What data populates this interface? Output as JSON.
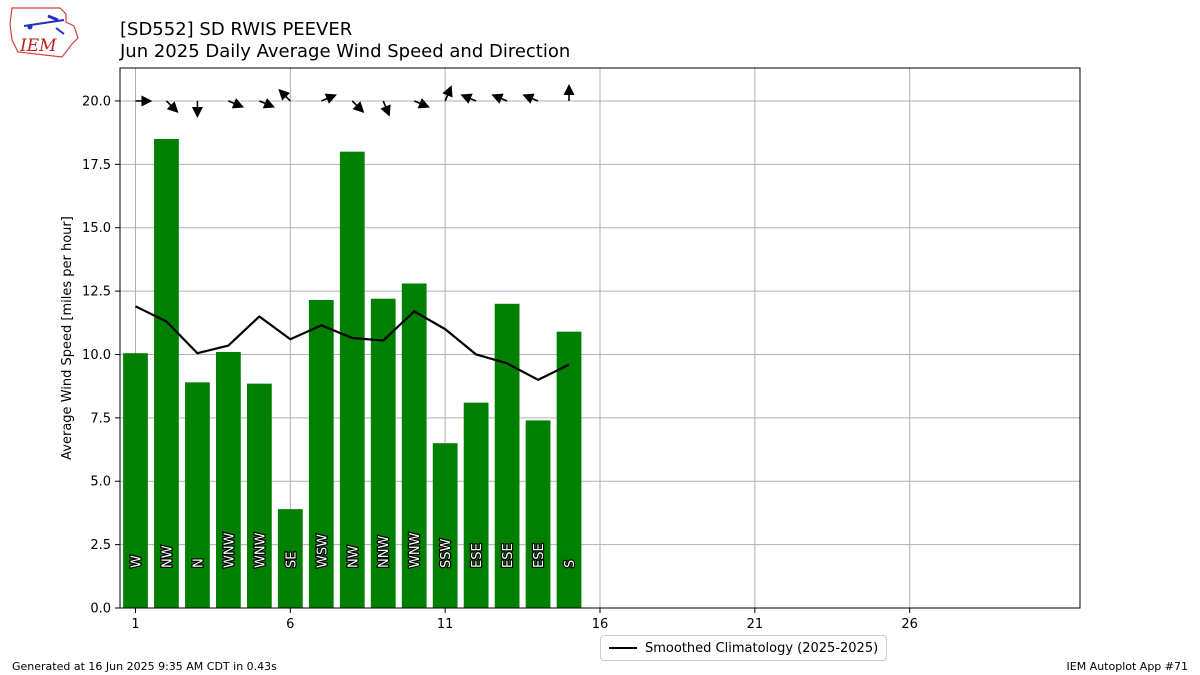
{
  "logo": {
    "text": "IEM"
  },
  "header": {
    "title_line1": "[SD552] SD RWIS PEEVER",
    "title_line2": "Jun 2025 Daily Average Wind Speed and Direction"
  },
  "footer": {
    "left": "Generated at 16 Jun 2025 9:35 AM CDT in 0.43s",
    "right": "IEM Autoplot App #71"
  },
  "colors": {
    "bar": "#008000",
    "climo": "#000000",
    "grid": "#b0b0b0"
  },
  "chart_data": {
    "type": "bar",
    "xlabel": "",
    "ylabel": "Average Wind Speed [miles per hour]",
    "xlim": [
      0.5,
      31.5
    ],
    "ylim": [
      0,
      21.3
    ],
    "xticks": [
      1,
      6,
      11,
      16,
      21,
      26
    ],
    "yticks": [
      0.0,
      2.5,
      5.0,
      7.5,
      10.0,
      12.5,
      15.0,
      17.5,
      20.0
    ],
    "grid": true,
    "days": [
      1,
      2,
      3,
      4,
      5,
      6,
      7,
      8,
      9,
      10,
      11,
      12,
      13,
      14,
      15
    ],
    "speed": [
      10.05,
      18.5,
      8.9,
      10.1,
      8.85,
      3.9,
      12.15,
      18.0,
      12.2,
      12.8,
      6.5,
      8.1,
      12.0,
      7.4,
      10.9
    ],
    "direction_labels": [
      "W",
      "NW",
      "N",
      "WNW",
      "WNW",
      "SE",
      "WSW",
      "NW",
      "NNW",
      "WNW",
      "SSW",
      "ESE",
      "ESE",
      "ESE",
      "S"
    ],
    "direction_deg": [
      270,
      315,
      0,
      292.5,
      292.5,
      135,
      247.5,
      315,
      337.5,
      292.5,
      202.5,
      112.5,
      112.5,
      112.5,
      180
    ],
    "arrow_y": 20.0,
    "series": [
      {
        "name": "Smoothed Climatology (2025-2025)",
        "x": [
          1,
          2,
          3,
          4,
          5,
          6,
          7,
          8,
          9,
          10,
          11,
          12,
          13,
          14,
          15
        ],
        "values": [
          11.9,
          11.3,
          10.05,
          10.35,
          11.5,
          10.6,
          11.15,
          10.65,
          10.55,
          11.7,
          11.0,
          10.0,
          9.65,
          9.0,
          9.6
        ]
      }
    ],
    "legend_position": "bottom-center"
  }
}
